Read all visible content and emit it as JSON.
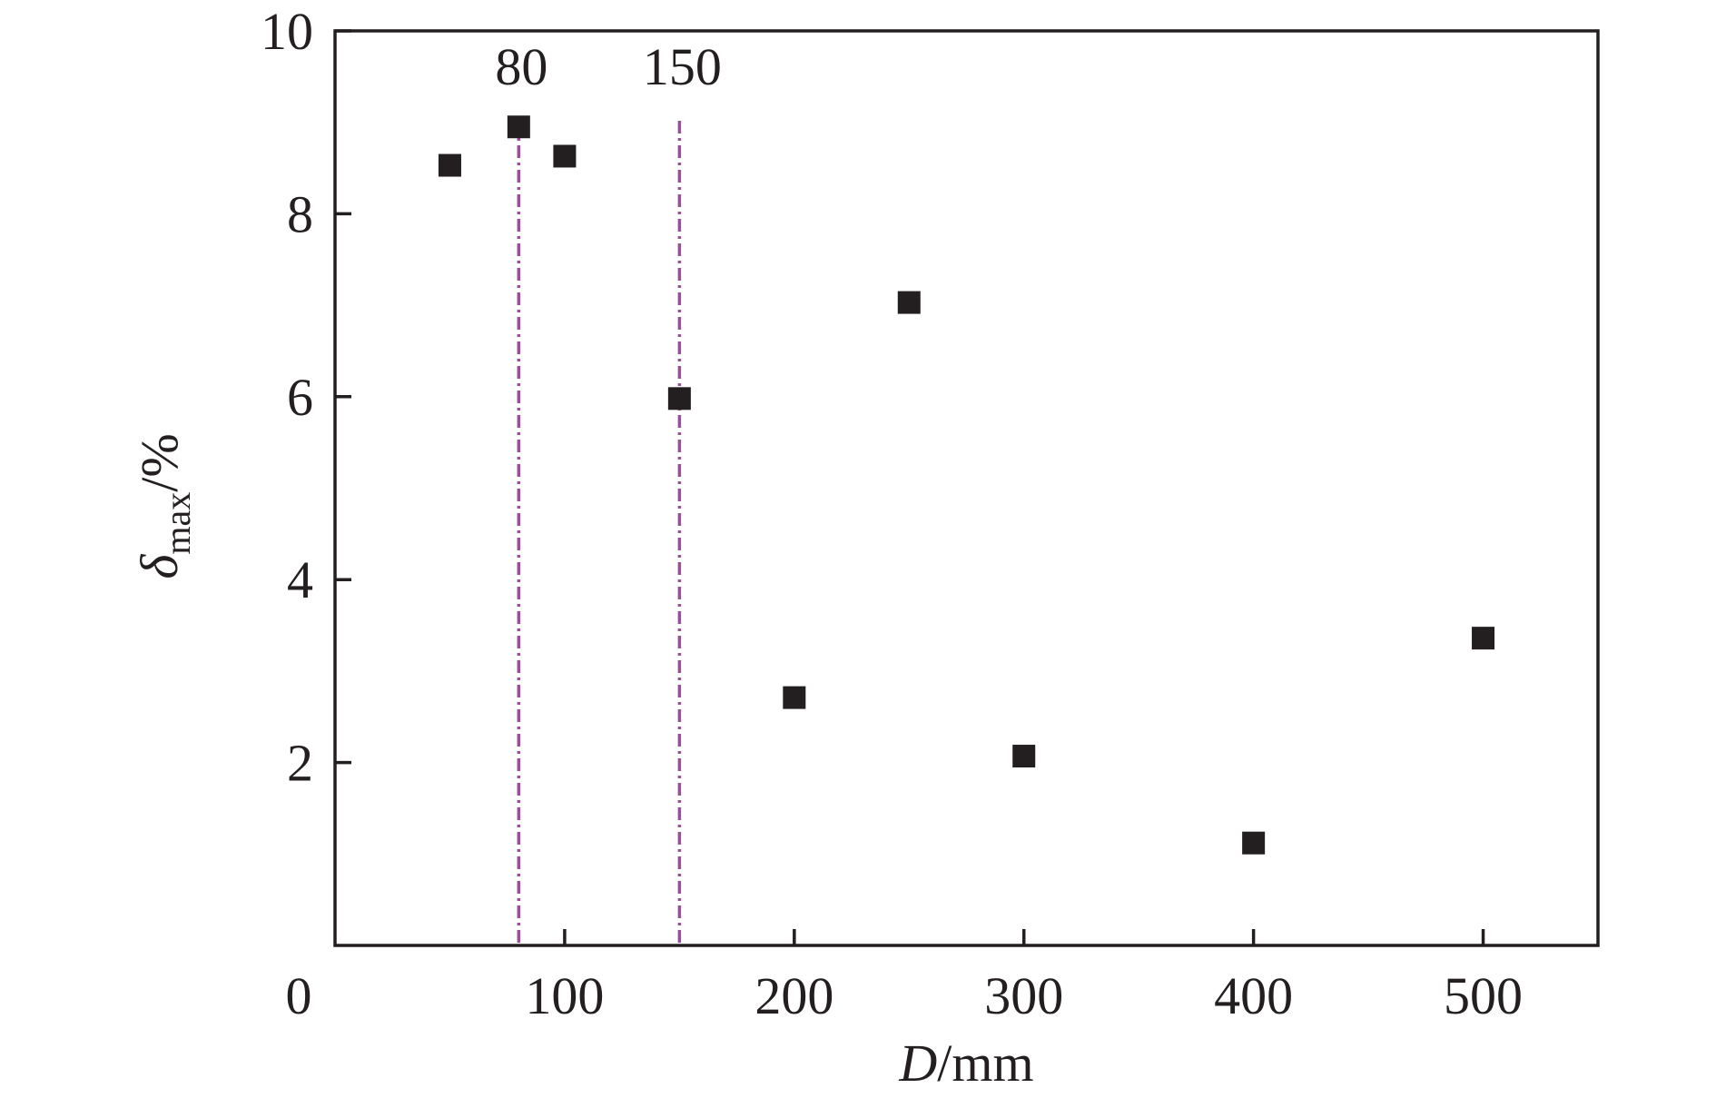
{
  "chart_data": {
    "type": "scatter",
    "title": "",
    "xlabel": {
      "italic": "D",
      "rest": "/mm"
    },
    "ylabel": {
      "symbol": "δ",
      "subscript": "max",
      "rest": "/%"
    },
    "xlim": [
      0,
      550
    ],
    "ylim": [
      0,
      10
    ],
    "xticks": [
      100,
      200,
      300,
      400,
      500
    ],
    "xtick_labels": [
      "100",
      "200",
      "300",
      "400",
      "500"
    ],
    "yticks": [
      2,
      4,
      6,
      8,
      10
    ],
    "ytick_labels": [
      "2",
      "4",
      "6",
      "8",
      "10"
    ],
    "origin_label": "0",
    "grid": false,
    "marker": "square",
    "marker_color": "#231f20",
    "reference_line_color": "#9b4f9b",
    "reference_lines": [
      {
        "x": 80,
        "label": "80"
      },
      {
        "x": 150,
        "label": "150"
      }
    ],
    "points": [
      {
        "x": 50,
        "y": 8.53
      },
      {
        "x": 80,
        "y": 8.95
      },
      {
        "x": 100,
        "y": 8.63
      },
      {
        "x": 150,
        "y": 5.98
      },
      {
        "x": 200,
        "y": 2.71
      },
      {
        "x": 250,
        "y": 7.03
      },
      {
        "x": 300,
        "y": 2.07
      },
      {
        "x": 400,
        "y": 1.12
      },
      {
        "x": 500,
        "y": 3.36
      }
    ]
  }
}
